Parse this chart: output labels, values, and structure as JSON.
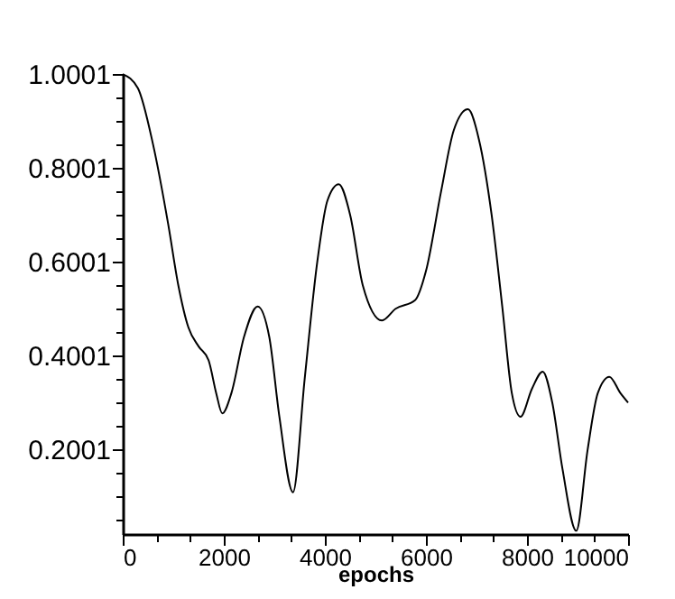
{
  "chart_data": {
    "type": "line",
    "xlabel": "epochs",
    "x": [
      0,
      300,
      600,
      900,
      1100,
      1300,
      1500,
      1700,
      1850,
      1970,
      2150,
      2400,
      2670,
      2900,
      3100,
      3370,
      3600,
      3850,
      4050,
      4275,
      4500,
      4750,
      5130,
      5400,
      5785,
      6000,
      6300,
      6550,
      6830,
      7050,
      7300,
      7510,
      7700,
      7870,
      8100,
      8310,
      8500,
      8700,
      8975,
      9200,
      9400,
      9630,
      9850,
      10000
    ],
    "series": [
      {
        "color": "#000000",
        "values": [
          1.0,
          0.97,
          0.85,
          0.68,
          0.55,
          0.46,
          0.42,
          0.39,
          0.32,
          0.277,
          0.32,
          0.44,
          0.505,
          0.44,
          0.27,
          0.109,
          0.35,
          0.6,
          0.73,
          0.765,
          0.7,
          0.55,
          0.475,
          0.5,
          0.518,
          0.58,
          0.75,
          0.88,
          0.925,
          0.86,
          0.7,
          0.505,
          0.32,
          0.27,
          0.33,
          0.366,
          0.3,
          0.16,
          0.027,
          0.2,
          0.32,
          0.355,
          0.32,
          0.3
        ]
      }
    ],
    "xlim": [
      0,
      10000
    ],
    "xticks": [
      0,
      {
        "value": 667,
        "label": null
      },
      {
        "value": 1333,
        "label": null
      },
      2000,
      {
        "value": 2667,
        "label": null
      },
      {
        "value": 3333,
        "label": null
      },
      4000,
      {
        "value": 4667,
        "label": null
      },
      {
        "value": 5333,
        "label": null
      },
      6000,
      {
        "value": 6667,
        "label": null
      },
      {
        "value": 7333,
        "label": null
      },
      8000,
      {
        "value": 8667,
        "label": null
      },
      {
        "value": 9333,
        "label": null
      },
      10000
    ],
    "ylim": [
      0.02,
      1.0001
    ],
    "yticks": [
      {
        "value": 0.0501,
        "label": null
      },
      {
        "value": 0.1001,
        "label": null
      },
      {
        "value": 0.1501,
        "label": null
      },
      0.2001,
      {
        "value": 0.2501,
        "label": null
      },
      {
        "value": 0.3001,
        "label": null
      },
      {
        "value": 0.3501,
        "label": null
      },
      0.4001,
      {
        "value": 0.4501,
        "label": null
      },
      {
        "value": 0.5001,
        "label": null
      },
      {
        "value": 0.5501,
        "label": null
      },
      0.6001,
      {
        "value": 0.6501,
        "label": null
      },
      {
        "value": 0.7001,
        "label": null
      },
      {
        "value": 0.7501,
        "label": null
      },
      0.8001,
      {
        "value": 0.8501,
        "label": null
      },
      {
        "value": 0.9001,
        "label": null
      },
      {
        "value": 0.9501,
        "label": null
      },
      1.0001
    ],
    "grid": false,
    "marker": "none",
    "line_style": "solid"
  }
}
